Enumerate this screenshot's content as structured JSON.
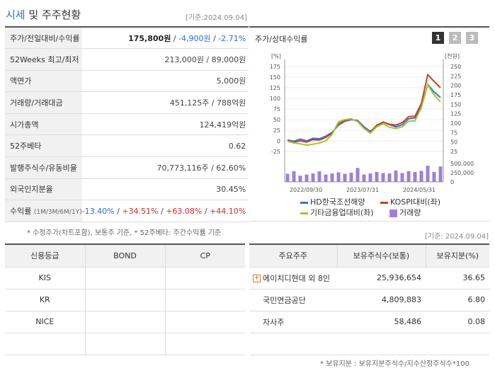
{
  "header": {
    "title_highlight": "시세",
    "title_rest": " 및 주주현황",
    "base_date": "[기준:2024.09.04]"
  },
  "snapshot": {
    "rows": [
      {
        "label": "주가/전일대비/수익률"
      },
      {
        "label": "52Weeks 최고/최저",
        "value": "213,000원 / 89,000원"
      },
      {
        "label": "액면가",
        "value": "5,000원"
      },
      {
        "label": "거래량/거래대금",
        "value": "451,125주 / 788억원"
      },
      {
        "label": "시가총액",
        "value": "124,419억원"
      },
      {
        "label": "52주베타",
        "value": "0.62"
      },
      {
        "label": "발행주식수/유동비율",
        "value": "70,773,116주 / 62.60%"
      },
      {
        "label": "외국인지분율",
        "value": "30.45%"
      },
      {
        "label": "수익률"
      }
    ],
    "price": "175,800원",
    "change": "-4,900원",
    "change_pct": "-2.71%",
    "return_periods": "(1M/3M/6M/1Y)",
    "returns": [
      "-13.40%",
      "+34.51%",
      "+63.08%",
      "+44.10%"
    ],
    "footnote": "* 수정주가(차트포함), 보통주 기준, * 52주베타: 주간수익률 기준"
  },
  "chart": {
    "title": "주가/상대수익률",
    "pages": [
      "1",
      "2",
      "3"
    ],
    "active_page": "1",
    "left_unit": "[%]",
    "right_unit": "[천원]",
    "legend": [
      "HD한국조선해양",
      "KOSPI대비(좌)",
      "기타금융업대비(좌)",
      "거래량"
    ]
  },
  "chart_data": {
    "type": "line",
    "x_ticks": [
      "2022/09/30",
      "2023/07/31",
      "2024/05/31"
    ],
    "y_left_ticks": [
      "175",
      "150",
      "125",
      "100",
      "75",
      "50",
      "25",
      "0",
      "-25"
    ],
    "y_right_ticks": [
      "250",
      "225",
      "200",
      "175",
      "150",
      "125",
      "100",
      "75",
      "50",
      "25"
    ],
    "volume_ticks": [
      "500,000",
      "250,000",
      "0"
    ],
    "ylim_left": [
      -25,
      175
    ],
    "ylim_right": [
      25,
      250
    ],
    "series": [
      {
        "name": "HD한국조선해양",
        "color": "#3b6fd4",
        "values": [
          2,
          -1,
          4,
          0,
          6,
          5,
          11,
          20,
          37,
          46,
          50,
          48,
          33,
          22,
          35,
          44,
          38,
          33,
          38,
          52,
          54,
          80,
          133,
          115,
          102
        ]
      },
      {
        "name": "KOSPI대비(좌)",
        "color": "#c9431e",
        "values": [
          0,
          -3,
          0,
          -3,
          3,
          2,
          8,
          18,
          40,
          48,
          51,
          46,
          31,
          20,
          37,
          44,
          39,
          37,
          43,
          57,
          58,
          88,
          156,
          140,
          125
        ]
      },
      {
        "name": "기타금융업대비(좌)",
        "color": "#9acd32",
        "values": [
          -1,
          -5,
          -7,
          -10,
          -8,
          -5,
          0,
          15,
          45,
          50,
          52,
          45,
          29,
          18,
          33,
          40,
          32,
          29,
          33,
          46,
          47,
          78,
          132,
          108,
          92
        ]
      }
    ],
    "volume": [
      220,
      290,
      170,
      200,
      230,
      290,
      200,
      230,
      260,
      220,
      250,
      380,
      200,
      230,
      270,
      240,
      230,
      310,
      240,
      290,
      270,
      300,
      440,
      270,
      420
    ]
  },
  "credit": {
    "headers": [
      "신용등급",
      "BOND",
      "CP"
    ],
    "rows": [
      {
        "agency": "KIS",
        "bond": "",
        "cp": ""
      },
      {
        "agency": "KR",
        "bond": "",
        "cp": ""
      },
      {
        "agency": "NICE",
        "bond": "",
        "cp": ""
      },
      {
        "agency": "",
        "bond": "",
        "cp": ""
      }
    ]
  },
  "shareholders": {
    "base_date": "[기준: 2024.09.04]",
    "headers": [
      "주요주주",
      "보유주식수(보통)",
      "보유지분(%)"
    ],
    "rows": [
      {
        "name": "에이치디현대 외 8인",
        "shares": "25,936,654",
        "pct": "36.65",
        "expandable": true
      },
      {
        "name": "국민연금공단",
        "shares": "4,809,883",
        "pct": "6.80"
      },
      {
        "name": "자사주",
        "shares": "58,486",
        "pct": "0.08"
      },
      {
        "name": "",
        "shares": "",
        "pct": ""
      }
    ],
    "footnote": "* 보유지분 : 보유지분주식수/지수산정주식수*100"
  }
}
